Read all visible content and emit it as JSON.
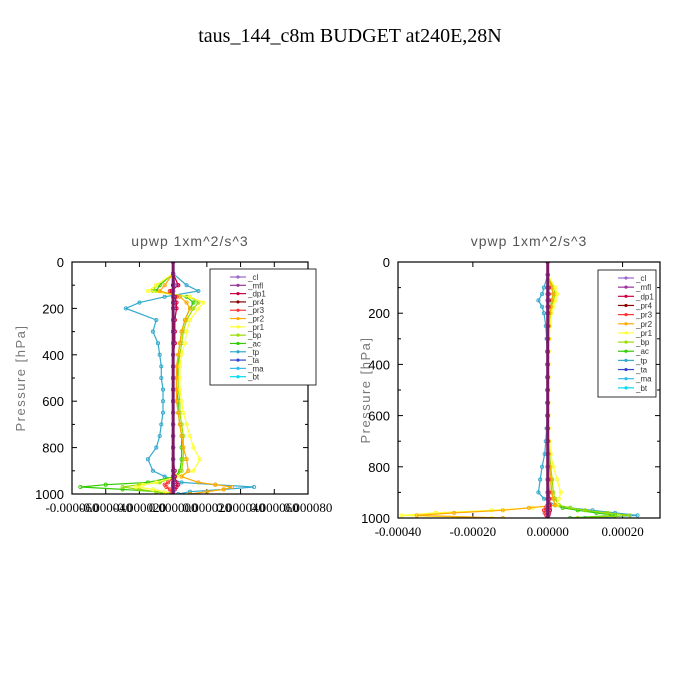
{
  "figure_title": "taus_144_c8m  BUDGET at240E,28N",
  "chart_data": [
    {
      "type": "line",
      "title": "upwp   1xm^2/s^3",
      "ylabel": "Pressure [hPa]",
      "xlabel": "",
      "ylim": [
        1000,
        0
      ],
      "xlim": [
        -6e-05,
        8e-05
      ],
      "xticks": [
        -6e-05,
        -4e-05,
        -2e-05,
        0.0,
        2e-05,
        4e-05,
        6e-05,
        8e-05
      ],
      "xtick_labels": [
        "-0.000060",
        "-0.000040",
        "-0.000020",
        "0.000000",
        "0.000020",
        "0.000040",
        "0.000060",
        "0.000080"
      ],
      "yticks": [
        0,
        200,
        400,
        600,
        800,
        1000
      ],
      "legend_position": "upper-right",
      "pressure": [
        0,
        50,
        100,
        125,
        150,
        175,
        200,
        250,
        300,
        350,
        400,
        450,
        500,
        550,
        600,
        650,
        700,
        750,
        800,
        850,
        900,
        925,
        950,
        960,
        970,
        980,
        990,
        1000
      ],
      "series": [
        {
          "name": "_cl",
          "color": "#9966cc",
          "values": [
            0,
            0,
            1e-06,
            0,
            0,
            0,
            0,
            0,
            0,
            0,
            0,
            0,
            0,
            0,
            0,
            0,
            0,
            0,
            0,
            0,
            0,
            0,
            0,
            0,
            0,
            0,
            0,
            0
          ]
        },
        {
          "name": "_mfl",
          "color": "#993399",
          "values": [
            0,
            0,
            1e-06,
            0,
            0,
            0,
            0,
            0,
            0,
            0,
            0,
            0,
            0,
            0,
            0,
            0,
            0,
            0,
            0,
            0,
            0,
            0,
            0,
            0,
            0,
            0,
            0,
            0
          ]
        },
        {
          "name": "_dp1",
          "color": "#cc0044",
          "values": [
            0,
            0,
            3e-06,
            -1e-06,
            1e-06,
            2e-06,
            2e-06,
            1e-06,
            1e-06,
            1e-06,
            0,
            0,
            0,
            0,
            0,
            0,
            0,
            0,
            0,
            0,
            1e-06,
            1e-06,
            2e-06,
            3e-06,
            2e-06,
            1e-06,
            0,
            0
          ]
        },
        {
          "name": "_pr4",
          "color": "#880000",
          "values": [
            0,
            0,
            0,
            0,
            0,
            0,
            0,
            0,
            0,
            0,
            0,
            0,
            0,
            0,
            0,
            0,
            0,
            0,
            0,
            0,
            0,
            0,
            0,
            0,
            0,
            0,
            0,
            0
          ]
        },
        {
          "name": "_pr3",
          "color": "#ff3333",
          "values": [
            0,
            0,
            3e-06,
            -2e-06,
            2e-06,
            1e-06,
            2e-06,
            1e-06,
            1e-06,
            1e-06,
            0,
            0,
            0,
            0,
            0,
            0,
            0,
            0,
            0,
            0,
            0,
            1e-06,
            -3e-06,
            -5e-06,
            -4e-06,
            -2e-06,
            -1e-06,
            0
          ]
        },
        {
          "name": "_pr2",
          "color": "#ffaa00",
          "values": [
            0,
            0,
            -5e-06,
            -8e-06,
            4e-06,
            8e-06,
            1e-05,
            7e-06,
            5e-06,
            4e-06,
            3e-06,
            2e-06,
            2e-06,
            2e-06,
            2e-06,
            3e-06,
            4e-06,
            5e-06,
            6e-06,
            8e-06,
            9e-06,
            5e-06,
            1.5e-05,
            2.5e-05,
            3.5e-05,
            3e-05,
            2e-05,
            1e-05
          ]
        },
        {
          "name": "_pr1",
          "color": "#ffff33",
          "values": [
            0,
            0,
            -1e-05,
            -1.5e-05,
            1e-05,
            1.8e-05,
            1.5e-05,
            1e-05,
            8e-06,
            7e-06,
            5e-06,
            4e-06,
            4e-06,
            4e-06,
            5e-06,
            6e-06,
            8e-06,
            1e-05,
            1.2e-05,
            1.6e-05,
            1.2e-05,
            2e-06,
            -1e-05,
            -1.8e-05,
            -2.2e-05,
            -1.2e-05,
            -5e-06,
            -2e-06
          ]
        },
        {
          "name": "_bp",
          "color": "#99dd00",
          "values": [
            0,
            0,
            -1e-05,
            -1.2e-05,
            1e-05,
            1.5e-05,
            1.2e-05,
            8e-06,
            6e-06,
            5e-06,
            4e-06,
            3e-06,
            3e-06,
            3e-06,
            4e-06,
            4e-06,
            5e-06,
            6e-06,
            6e-06,
            6e-06,
            5e-06,
            2e-06,
            -8e-06,
            -2e-05,
            -3e-05,
            -2e-05,
            -1e-05,
            -5e-06
          ]
        },
        {
          "name": "_ac",
          "color": "#33cc00",
          "values": [
            0,
            0,
            -8e-06,
            -1e-05,
            8e-06,
            1.2e-05,
            1e-05,
            7e-06,
            5e-06,
            4e-06,
            3e-06,
            3e-06,
            2e-06,
            2e-06,
            3e-06,
            3e-06,
            4e-06,
            5e-06,
            5e-06,
            5e-06,
            4e-06,
            1e-06,
            -1.5e-05,
            -4e-05,
            -5.5e-05,
            -3e-05,
            -1e-05,
            -3e-06
          ]
        },
        {
          "name": "_tp",
          "color": "#33aacc",
          "values": [
            0,
            0,
            8e-06,
            1.5e-05,
            -5e-06,
            -2e-05,
            -2.8e-05,
            -1e-05,
            -1.2e-05,
            -9e-06,
            -8e-06,
            -7e-06,
            -7e-06,
            -6e-06,
            -6e-06,
            -6e-06,
            -7e-06,
            -8e-06,
            -1e-05,
            -1.5e-05,
            -1.2e-05,
            -5e-06,
            5e-06,
            2.5e-05,
            4.8e-05,
            3e-05,
            1e-05,
            3e-06
          ]
        },
        {
          "name": "_ta",
          "color": "#3344cc",
          "values": [
            0,
            0,
            0,
            0,
            0,
            0,
            0,
            0,
            0,
            0,
            0,
            0,
            0,
            0,
            0,
            0,
            0,
            0,
            0,
            0,
            0,
            0,
            0,
            0,
            0,
            0,
            0,
            0
          ]
        },
        {
          "name": "_ma",
          "color": "#33bbee",
          "values": [
            0,
            0,
            0,
            0,
            0,
            0,
            0,
            0,
            0,
            0,
            0,
            0,
            0,
            0,
            0,
            0,
            0,
            0,
            0,
            0,
            0,
            0,
            0,
            0,
            0,
            0,
            0,
            0
          ]
        },
        {
          "name": "_bt",
          "color": "#00ddee",
          "values": [
            0,
            0,
            0,
            0,
            0,
            0,
            0,
            0,
            0,
            0,
            0,
            0,
            0,
            0,
            0,
            0,
            0,
            0,
            0,
            0,
            0,
            0,
            0,
            0,
            0,
            0,
            0,
            0
          ]
        }
      ]
    },
    {
      "type": "line",
      "title": "vpwp   1xm^2/s^3",
      "ylabel": "Pressure [hPa]",
      "xlabel": "",
      "ylim": [
        1000,
        0
      ],
      "xlim": [
        -0.0004,
        0.0003
      ],
      "xticks": [
        -0.0004,
        -0.0002,
        0.0,
        0.0002
      ],
      "xtick_labels": [
        "-0.00040",
        "-0.00020",
        "0.00000",
        "0.00020"
      ],
      "yticks": [
        0,
        200,
        400,
        600,
        800,
        1000
      ],
      "legend_position": "upper-right",
      "pressure": [
        0,
        50,
        100,
        125,
        150,
        175,
        200,
        250,
        300,
        350,
        400,
        450,
        500,
        550,
        600,
        650,
        700,
        750,
        800,
        850,
        900,
        925,
        950,
        960,
        970,
        980,
        990,
        1000
      ],
      "series": [
        {
          "name": "_cl",
          "color": "#9966cc",
          "values": [
            0,
            0,
            0,
            0,
            0,
            0,
            0,
            0,
            0,
            0,
            0,
            0,
            0,
            0,
            0,
            0,
            0,
            0,
            0,
            0,
            0,
            0,
            0,
            0,
            0,
            0,
            0,
            0
          ]
        },
        {
          "name": "_mfl",
          "color": "#993399",
          "values": [
            0,
            0,
            0,
            0,
            0,
            0,
            0,
            0,
            0,
            0,
            0,
            0,
            0,
            0,
            0,
            0,
            0,
            0,
            0,
            0,
            0,
            0,
            0,
            0,
            0,
            0,
            0,
            0
          ]
        },
        {
          "name": "_dp1",
          "color": "#cc0044",
          "values": [
            0,
            0,
            3e-06,
            2e-06,
            3e-06,
            2e-06,
            1e-06,
            1e-06,
            0,
            0,
            0,
            0,
            0,
            0,
            0,
            0,
            0,
            0,
            0,
            1e-06,
            1e-06,
            2e-06,
            4e-06,
            5e-06,
            6e-06,
            4e-06,
            2e-06,
            0
          ]
        },
        {
          "name": "_pr4",
          "color": "#880000",
          "values": [
            0,
            0,
            0,
            0,
            0,
            0,
            0,
            0,
            0,
            0,
            0,
            0,
            0,
            0,
            0,
            0,
            0,
            0,
            0,
            0,
            0,
            0,
            0,
            0,
            0,
            0,
            0,
            0
          ]
        },
        {
          "name": "_pr3",
          "color": "#ff3333",
          "values": [
            0,
            0,
            2e-06,
            3e-06,
            3e-06,
            2e-06,
            1e-06,
            1e-06,
            0,
            0,
            0,
            0,
            0,
            0,
            0,
            0,
            0,
            0,
            1e-06,
            2e-06,
            4e-06,
            5e-06,
            6e-06,
            -5e-06,
            -1e-05,
            -8e-06,
            -4e-06,
            0
          ]
        },
        {
          "name": "_pr2",
          "color": "#ffaa00",
          "values": [
            0,
            0,
            1e-05,
            1.5e-05,
            1.2e-05,
            8e-06,
            5e-06,
            3e-06,
            2e-06,
            1e-06,
            1e-06,
            1e-06,
            1e-06,
            1e-06,
            1e-06,
            1e-06,
            2e-06,
            3e-06,
            5e-06,
            8e-06,
            1e-05,
            1.5e-05,
            2e-05,
            -5e-05,
            -0.00012,
            -0.00025,
            -0.00035,
            -0.00012
          ]
        },
        {
          "name": "_pr1",
          "color": "#ffff33",
          "values": [
            0,
            0,
            2e-05,
            2.5e-05,
            2e-05,
            1.5e-05,
            1e-05,
            6e-06,
            4e-06,
            3e-06,
            2e-06,
            2e-06,
            2e-06,
            2e-06,
            2e-06,
            3e-06,
            5e-06,
            8e-06,
            1.5e-05,
            2.5e-05,
            3.5e-05,
            3e-05,
            2.5e-05,
            -4e-05,
            -0.00015,
            -0.0003,
            -0.00039,
            -0.00015
          ]
        },
        {
          "name": "_bp",
          "color": "#99dd00",
          "values": [
            0,
            0,
            1.5e-05,
            2e-05,
            1.5e-05,
            1e-05,
            7e-06,
            4e-06,
            3e-06,
            2e-06,
            2e-06,
            2e-06,
            2e-06,
            2e-06,
            2e-06,
            2e-06,
            3e-06,
            5e-06,
            8e-06,
            1.2e-05,
            1.5e-05,
            2e-05,
            3e-05,
            6e-05,
            0.0001,
            0.00016,
            0.00022,
            8e-05
          ]
        },
        {
          "name": "_ac",
          "color": "#33cc00",
          "values": [
            0,
            0,
            1e-05,
            1.5e-05,
            1e-05,
            8e-06,
            5e-06,
            3e-06,
            2e-06,
            2e-06,
            1e-06,
            1e-06,
            1e-06,
            1e-06,
            1e-06,
            2e-06,
            2e-06,
            3e-06,
            5e-06,
            8e-06,
            1e-05,
            1.5e-05,
            2e-05,
            4e-05,
            8e-05,
            0.00013,
            0.00018,
            6e-05
          ]
        },
        {
          "name": "_tp",
          "color": "#33aacc",
          "values": [
            0,
            0,
            -1e-05,
            -1.5e-05,
            -2.5e-05,
            -1.5e-05,
            -1e-05,
            -5e-06,
            -3e-06,
            -2e-06,
            -2e-06,
            -2e-06,
            -2e-06,
            -2e-06,
            -2e-06,
            -3e-06,
            -5e-06,
            -8e-06,
            -1.5e-05,
            -2e-05,
            -2.5e-05,
            -1e-05,
            2e-05,
            6e-05,
            0.00012,
            0.00018,
            0.00024,
            0.0001
          ]
        },
        {
          "name": "_ta",
          "color": "#3344cc",
          "values": [
            0,
            0,
            0,
            0,
            0,
            0,
            0,
            0,
            0,
            0,
            0,
            0,
            0,
            0,
            0,
            0,
            0,
            0,
            0,
            0,
            0,
            0,
            0,
            0,
            0,
            0,
            0,
            0
          ]
        },
        {
          "name": "_ma",
          "color": "#33bbee",
          "values": [
            0,
            0,
            0,
            0,
            0,
            0,
            0,
            0,
            0,
            0,
            0,
            0,
            0,
            0,
            0,
            0,
            0,
            0,
            0,
            0,
            0,
            0,
            0,
            0,
            0,
            0,
            0,
            0
          ]
        },
        {
          "name": "_bt",
          "color": "#00ddee",
          "values": [
            0,
            0,
            0,
            0,
            0,
            0,
            0,
            0,
            0,
            0,
            0,
            0,
            0,
            0,
            0,
            0,
            0,
            0,
            0,
            0,
            0,
            0,
            0,
            0,
            0,
            0,
            0,
            0
          ]
        }
      ]
    }
  ]
}
